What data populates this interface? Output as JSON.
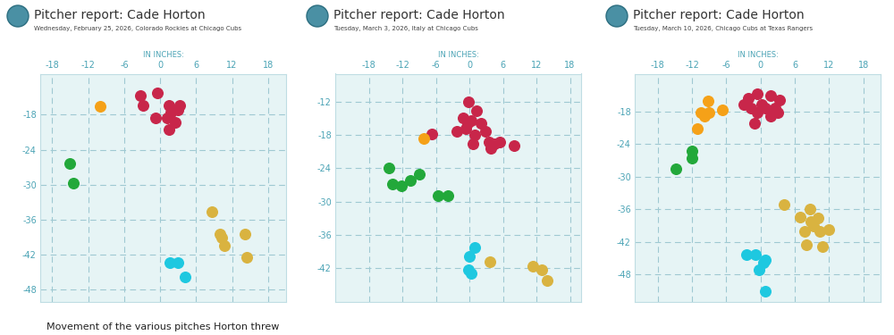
{
  "chart_data": [
    {
      "type": "scatter",
      "title": "Pitcher report: Cade Horton",
      "subtitle": "Wednesday, February 25, 2026, Colorado Rockies at Chicago Cubs",
      "x_label": "IN INCHES:",
      "caption": "Movement of the various pitches Horton threw",
      "xlim": [
        -20,
        21
      ],
      "ylim": [
        -50,
        -11
      ],
      "xticks": [
        -18,
        -12,
        -6,
        0,
        6,
        12,
        18
      ],
      "yticks": [
        -18,
        -24,
        -30,
        -36,
        -42,
        -48
      ],
      "grid": true,
      "series": [
        {
          "color": "#c8264a",
          "x": [
            -3.3,
            -2.9,
            -0.4,
            -0.7,
            1.5,
            1.8,
            2.9,
            2.5,
            1.5,
            3.2,
            1.1
          ],
          "y": [
            -14.8,
            -16.5,
            -14.3,
            -18.6,
            -16.5,
            -17.6,
            -17.2,
            -19.3,
            -20.6,
            -16.5,
            -18.6
          ]
        },
        {
          "color": "#f5a118",
          "x": [
            -10.0
          ],
          "y": [
            -16.6
          ]
        },
        {
          "color": "#22a83a",
          "x": [
            -15.1,
            -14.5
          ],
          "y": [
            -26.3,
            -29.7
          ]
        },
        {
          "color": "#d9b340",
          "x": [
            8.6,
            10.0,
            10.3,
            10.7,
            14.1,
            14.5
          ],
          "y": [
            -34.7,
            -38.4,
            -39.0,
            -40.5,
            -38.4,
            -42.4
          ]
        },
        {
          "color": "#1ec8e0",
          "x": [
            1.6,
            3.0,
            4.2
          ],
          "y": [
            -43.4,
            -43.4,
            -45.8
          ]
        }
      ]
    },
    {
      "type": "scatter",
      "title": "Pitcher report: Cade Horton",
      "subtitle": "Tuesday, March 3, 2026, Italy at Chicago Cubs",
      "x_label": "IN INCHES:",
      "xlim": [
        -24,
        20
      ],
      "ylim": [
        -48,
        -7
      ],
      "xticks": [
        -18,
        -12,
        -6,
        0,
        6,
        12,
        18
      ],
      "yticks": [
        -12,
        -18,
        -24,
        -30,
        -36,
        -42
      ],
      "grid": true,
      "series": [
        {
          "color": "#c8264a",
          "x": [
            -0.1,
            1.3,
            -1.1,
            0.3,
            2.1,
            -0.7,
            -2.2,
            1.0,
            2.8,
            3.5,
            4.5,
            5.5,
            3.8,
            0.6,
            8.0,
            -6.7,
            -0.4
          ],
          "y": [
            -12.1,
            -13.6,
            -15.0,
            -15.4,
            -15.9,
            -16.9,
            -17.3,
            -18.0,
            -17.3,
            -19.3,
            -19.7,
            -19.3,
            -20.5,
            -19.7,
            -20.0,
            -17.8,
            -15.9
          ]
        },
        {
          "color": "#f5a118",
          "x": [
            -8.1
          ],
          "y": [
            -18.6
          ]
        },
        {
          "color": "#22a83a",
          "x": [
            -14.4,
            -13.7,
            -12.2,
            -10.6,
            -8.9,
            -5.6,
            -3.8
          ],
          "y": [
            -24.0,
            -26.8,
            -27.2,
            -26.2,
            -25.1,
            -29.0,
            -29.0
          ]
        },
        {
          "color": "#1ec8e0",
          "x": [
            1.0,
            0.0,
            -0.1,
            0.3
          ],
          "y": [
            -38.2,
            -39.8,
            -42.3,
            -42.9
          ]
        },
        {
          "color": "#d9b340",
          "x": [
            3.6,
            11.3,
            12.9,
            13.9
          ],
          "y": [
            -40.9,
            -41.7,
            -42.3,
            -44.2
          ]
        }
      ]
    },
    {
      "type": "scatter",
      "title": "Pitcher report: Cade Horton",
      "subtitle": "Tuesday, March 10, 2026, Chicago Cubs at Texas Rangers",
      "x_label": "IN INCHES:",
      "xlim": [
        -22,
        21
      ],
      "ylim": [
        -53,
        -11
      ],
      "xticks": [
        -18,
        -12,
        -6,
        0,
        6,
        12,
        18
      ],
      "yticks": [
        -18,
        -24,
        -30,
        -36,
        -42,
        -48
      ],
      "grid": true,
      "series": [
        {
          "color": "#c8264a",
          "x": [
            -2.2,
            -0.6,
            1.7,
            3.3,
            -3.0,
            0.2,
            2.5,
            -0.6,
            1.7,
            -1.1,
            0.9,
            -1.7,
            3.0
          ],
          "y": [
            -15.5,
            -14.7,
            -15.0,
            -15.8,
            -16.6,
            -16.6,
            -17.4,
            -18.2,
            -18.9,
            -20.2,
            -17.4,
            -17.4,
            -18.2
          ]
        },
        {
          "color": "#f5a118",
          "x": [
            -9.2,
            -10.5,
            -9.1,
            -6.7,
            -11.1,
            -9.8
          ],
          "y": [
            -16.1,
            -18.2,
            -18.2,
            -17.7,
            -21.1,
            -18.9
          ]
        },
        {
          "color": "#22a83a",
          "x": [
            -14.8,
            -12.0,
            -12.0
          ],
          "y": [
            -28.5,
            -25.2,
            -26.6
          ]
        },
        {
          "color": "#d9b340",
          "x": [
            4.1,
            6.9,
            8.6,
            8.8,
            10.0,
            10.3,
            11.9,
            7.7,
            8.0,
            10.8,
            9.2
          ],
          "y": [
            -35.1,
            -37.5,
            -35.9,
            -38.3,
            -37.6,
            -40.1,
            -39.8,
            -40.1,
            -42.6,
            -42.8,
            -39.1
          ]
        },
        {
          "color": "#1ec8e0",
          "x": [
            -2.5,
            -0.9,
            0.5,
            0.9,
            -0.3,
            0.9
          ],
          "y": [
            -44.4,
            -44.4,
            -45.9,
            -45.3,
            -47.2,
            -51.1
          ]
        }
      ]
    }
  ]
}
